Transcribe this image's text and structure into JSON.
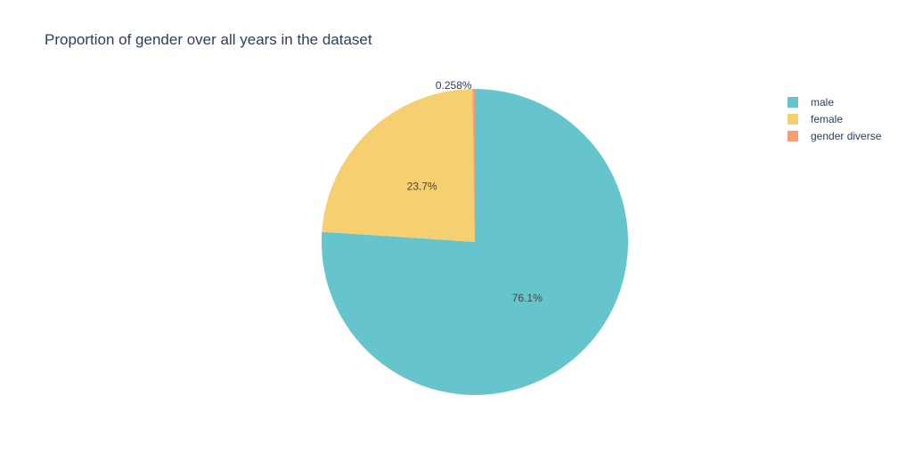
{
  "chart_data": {
    "type": "pie",
    "title": "Proportion of gender over all years in the dataset",
    "categories": [
      "male",
      "female",
      "gender diverse"
    ],
    "values": [
      76.1,
      23.7,
      0.258
    ],
    "labels": [
      "76.1%",
      "23.7%",
      "0.258%"
    ],
    "colors": [
      "#66c5cc",
      "#f6cf71",
      "#f89c74"
    ],
    "legend_position": "top-right",
    "direction": "clockwise",
    "start_angle": "12 o'clock"
  }
}
